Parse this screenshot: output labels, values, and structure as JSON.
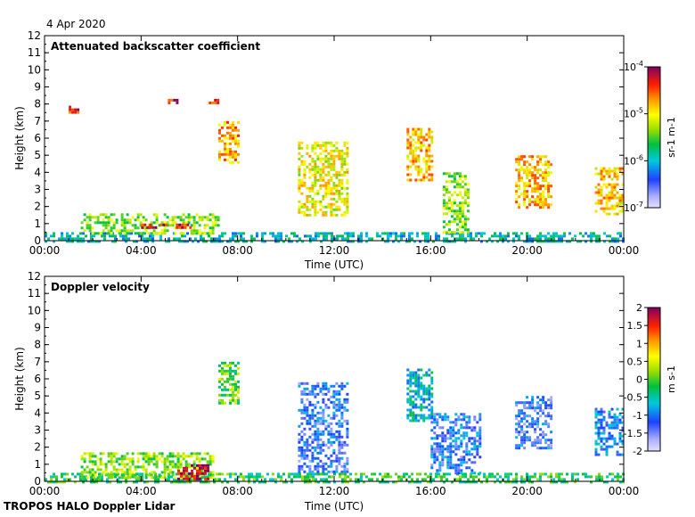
{
  "date_label": "4 Apr 2020",
  "footer": "TROPOS HALO Doppler Lidar",
  "chart_data": [
    {
      "type": "heatmap",
      "title": "Attenuated backscatter coefficient",
      "xlabel": "Time (UTC)",
      "ylabel": "Height (km)",
      "x_ticks": [
        "00:00",
        "04:00",
        "08:00",
        "12:00",
        "16:00",
        "20:00",
        "00:00"
      ],
      "x_range_hours": [
        0,
        24
      ],
      "ylim": [
        0,
        12
      ],
      "y_ticks": [
        0,
        1,
        2,
        3,
        4,
        5,
        6,
        7,
        8,
        9,
        10,
        11,
        12
      ],
      "colorbar": {
        "scale": "log",
        "range": [
          1e-07,
          0.0001
        ],
        "ticks": [
          {
            "value": 0.0001,
            "base": "10",
            "exp": "-4"
          },
          {
            "value": 1e-05,
            "base": "10",
            "exp": "-5"
          },
          {
            "value": 1e-06,
            "base": "10",
            "exp": "-6"
          },
          {
            "value": 1e-07,
            "base": "10",
            "exp": "-7"
          }
        ],
        "unit": "sr-1 m-1"
      },
      "features": [
        {
          "t0": 0.0,
          "t1": 24.0,
          "h0": 0.0,
          "h1": 0.5,
          "level": 0.35
        },
        {
          "t0": 1.5,
          "t1": 7.2,
          "h0": 0.4,
          "h1": 1.6,
          "level": 0.55
        },
        {
          "t0": 4.0,
          "t1": 6.0,
          "h0": 0.7,
          "h1": 1.0,
          "level": 0.92
        },
        {
          "t0": 1.0,
          "t1": 1.5,
          "h0": 7.5,
          "h1": 7.9,
          "level": 0.9
        },
        {
          "t0": 5.0,
          "t1": 5.5,
          "h0": 8.0,
          "h1": 8.3,
          "level": 0.9
        },
        {
          "t0": 6.8,
          "t1": 7.2,
          "h0": 8.1,
          "h1": 8.3,
          "level": 0.9
        },
        {
          "t0": 7.2,
          "t1": 8.0,
          "h0": 4.5,
          "h1": 7.0,
          "level": 0.75
        },
        {
          "t0": 10.5,
          "t1": 12.5,
          "h0": 1.5,
          "h1": 5.8,
          "level": 0.65
        },
        {
          "t0": 15.0,
          "t1": 16.0,
          "h0": 3.5,
          "h1": 6.6,
          "level": 0.72
        },
        {
          "t0": 16.5,
          "t1": 17.5,
          "h0": 0.5,
          "h1": 4.0,
          "level": 0.55
        },
        {
          "t0": 19.5,
          "t1": 21.0,
          "h0": 2.0,
          "h1": 5.0,
          "level": 0.72
        },
        {
          "t0": 22.8,
          "t1": 24.0,
          "h0": 1.5,
          "h1": 4.3,
          "level": 0.7
        }
      ]
    },
    {
      "type": "heatmap",
      "title": "Doppler velocity",
      "xlabel": "Time (UTC)",
      "ylabel": "Height (km)",
      "x_ticks": [
        "00:00",
        "04:00",
        "08:00",
        "12:00",
        "16:00",
        "20:00",
        "00:00"
      ],
      "x_range_hours": [
        0,
        24
      ],
      "ylim": [
        0,
        12
      ],
      "y_ticks": [
        0,
        1,
        2,
        3,
        4,
        5,
        6,
        7,
        8,
        9,
        10,
        11,
        12
      ],
      "colorbar": {
        "scale": "linear",
        "range": [
          -2,
          2
        ],
        "ticks": [
          "2",
          "1.5",
          "1",
          "0.5",
          "0",
          "-0.5",
          "-1",
          "-1.5",
          "-2"
        ],
        "unit": "m s-1"
      },
      "features": [
        {
          "t0": 0.0,
          "t1": 24.0,
          "h0": 0.0,
          "h1": 0.5,
          "level": 0.45
        },
        {
          "t0": 1.5,
          "t1": 7.0,
          "h0": 0.2,
          "h1": 1.7,
          "level": 0.55
        },
        {
          "t0": 5.5,
          "t1": 6.8,
          "h0": 0.2,
          "h1": 1.0,
          "level": 0.95
        },
        {
          "t0": 7.2,
          "t1": 8.0,
          "h0": 4.5,
          "h1": 7.0,
          "level": 0.5
        },
        {
          "t0": 10.5,
          "t1": 12.5,
          "h0": 0.5,
          "h1": 5.8,
          "level": 0.2
        },
        {
          "t0": 15.0,
          "t1": 16.0,
          "h0": 3.5,
          "h1": 6.6,
          "level": 0.35
        },
        {
          "t0": 16.0,
          "t1": 18.0,
          "h0": 0.5,
          "h1": 4.0,
          "level": 0.22
        },
        {
          "t0": 19.5,
          "t1": 21.0,
          "h0": 2.0,
          "h1": 5.0,
          "level": 0.2
        },
        {
          "t0": 22.8,
          "t1": 24.0,
          "h0": 1.5,
          "h1": 4.3,
          "level": 0.25
        }
      ]
    }
  ]
}
